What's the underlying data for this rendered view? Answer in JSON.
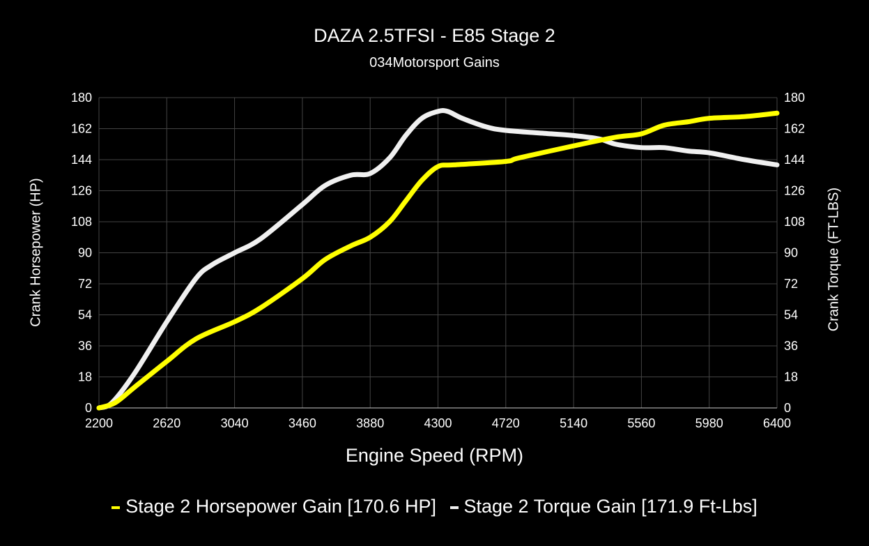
{
  "chart_data": {
    "type": "line",
    "title": "DAZA 2.5TFSI - E85 Stage 2",
    "subtitle": "034Motorsport Gains",
    "xlabel": "Engine Speed (RPM)",
    "ylabel": "Crank Horsepower (HP)",
    "y2label": "Crank Torque (FT-LBS)",
    "xlim": [
      2200,
      6400
    ],
    "ylim": [
      0,
      180
    ],
    "y2lim": [
      0,
      180
    ],
    "xticks": [
      "2200",
      "2620",
      "3040",
      "3460",
      "3880",
      "4300",
      "4720",
      "5140",
      "5560",
      "5980",
      "6400"
    ],
    "yticks": [
      "0",
      "18",
      "36",
      "54",
      "72",
      "90",
      "108",
      "126",
      "144",
      "162",
      "180"
    ],
    "grid": true,
    "legend": "bottom",
    "background": "#000000",
    "series": [
      {
        "name": "Stage 2 Horsepower Gain [170.6 HP]",
        "color": "#ffff00",
        "axis": "left",
        "x": [
          2200,
          2300,
          2420,
          2620,
          2800,
          3040,
          3200,
          3460,
          3600,
          3760,
          3880,
          4000,
          4100,
          4200,
          4300,
          4400,
          4720,
          4800,
          5140,
          5400,
          5560,
          5700,
          5850,
          5980,
          6200,
          6400
        ],
        "y": [
          0,
          3,
          12,
          27,
          40,
          50,
          58,
          75,
          86,
          94,
          99,
          108,
          120,
          132,
          140,
          141,
          143,
          145,
          152,
          157,
          159,
          164,
          166,
          168,
          169,
          171
        ]
      },
      {
        "name": "Stage 2 Torque Gain [171.9 Ft-Lbs]",
        "color": "#f0f0f0",
        "axis": "right",
        "x": [
          2200,
          2280,
          2420,
          2620,
          2800,
          2900,
          3040,
          3200,
          3460,
          3600,
          3760,
          3880,
          4000,
          4100,
          4200,
          4300,
          4360,
          4450,
          4600,
          4720,
          5000,
          5140,
          5300,
          5400,
          5560,
          5700,
          5850,
          5980,
          6200,
          6400
        ],
        "y": [
          0,
          3,
          20,
          50,
          75,
          83,
          90,
          98,
          118,
          129,
          135,
          136,
          145,
          158,
          168,
          172,
          172,
          168,
          163,
          161,
          159,
          158,
          156,
          153,
          151,
          151,
          149,
          148,
          144,
          141
        ]
      }
    ]
  }
}
